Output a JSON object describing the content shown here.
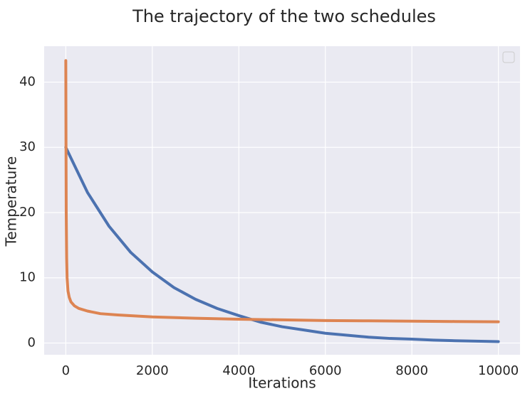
{
  "chart_data": {
    "type": "line",
    "title": "The trajectory of the two schedules",
    "xlabel": "Iterations",
    "ylabel": "Temperature",
    "xlim": [
      -500,
      10500
    ],
    "ylim": [
      -1.8,
      45.5
    ],
    "xticks": [
      0,
      2000,
      4000,
      6000,
      8000,
      10000
    ],
    "yticks": [
      0,
      10,
      20,
      30,
      40
    ],
    "grid": true,
    "legend": "top-right, empty",
    "colors": {
      "plot_bg": "#eaeaf2",
      "grid": "#ffffff",
      "text": "#262626"
    },
    "series": [
      {
        "color": "#4c72b0",
        "x": [
          0,
          500,
          1000,
          1500,
          2000,
          2500,
          3000,
          3500,
          4000,
          4500,
          5000,
          5500,
          6000,
          6500,
          7000,
          7500,
          8000,
          8500,
          9000,
          9500,
          10000
        ],
        "y": [
          30.0,
          23.1,
          17.9,
          13.9,
          10.9,
          8.5,
          6.7,
          5.3,
          4.2,
          3.2,
          2.5,
          2.0,
          1.5,
          1.2,
          0.9,
          0.7,
          0.6,
          0.45,
          0.35,
          0.28,
          0.22
        ]
      },
      {
        "color": "#dd8452",
        "x": [
          0,
          5,
          10,
          20,
          30,
          50,
          80,
          120,
          200,
          300,
          500,
          800,
          1200,
          2000,
          3000,
          4000,
          5000,
          6000,
          7000,
          8000,
          9000,
          10000
        ],
        "y": [
          43.3,
          30.0,
          20.0,
          13.0,
          10.0,
          8.0,
          7.0,
          6.3,
          5.7,
          5.3,
          4.9,
          4.5,
          4.3,
          4.0,
          3.8,
          3.65,
          3.55,
          3.45,
          3.4,
          3.35,
          3.3,
          3.25
        ]
      }
    ]
  }
}
